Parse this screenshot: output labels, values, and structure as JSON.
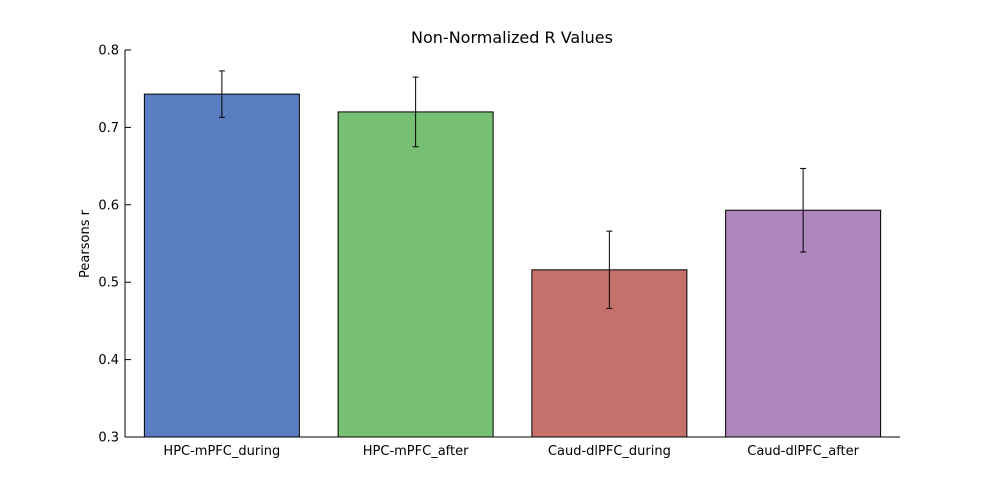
{
  "chart_data": {
    "type": "bar",
    "title": "Non-Normalized R Values",
    "xlabel": "",
    "ylabel": "Pearsons r",
    "ylim": [
      0.3,
      0.8
    ],
    "yticks": [
      "0.3",
      "0.4",
      "0.5",
      "0.6",
      "0.7",
      "0.8"
    ],
    "categories": [
      "HPC-mPFC_during",
      "HPC-mPFC_after",
      "Caud-dlPFC_during",
      "Caud-dlPFC_after"
    ],
    "values": [
      0.743,
      0.72,
      0.516,
      0.593
    ],
    "errors": [
      0.03,
      0.045,
      0.05,
      0.054
    ],
    "colors": [
      "#5b7dc2",
      "#77c073",
      "#c6706c",
      "#ae85bd"
    ],
    "grid": false,
    "legend": "none"
  }
}
